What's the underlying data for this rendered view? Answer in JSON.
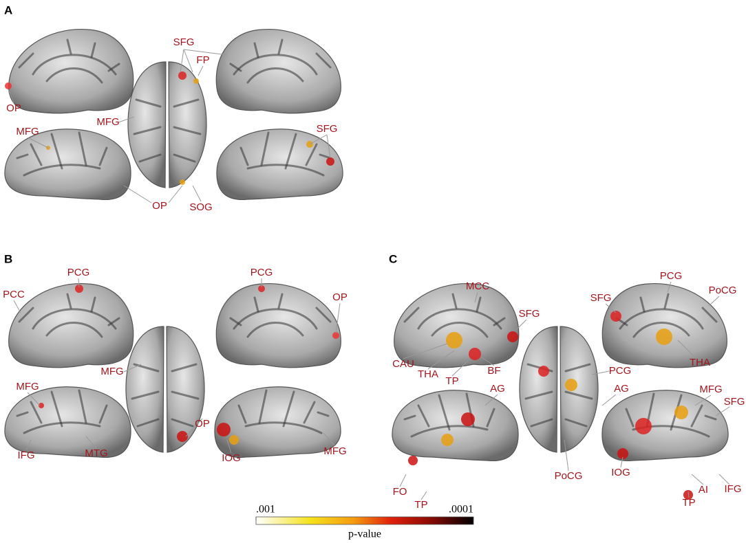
{
  "panels": [
    {
      "letter": "A",
      "labels": [
        "OP",
        "SFG",
        "FP",
        "MFG",
        "MFG",
        "SFG",
        "OP",
        "SOG"
      ]
    },
    {
      "letter": "B",
      "labels": [
        "PCG",
        "PCC",
        "PCG",
        "OP",
        "MFG",
        "MFG",
        "IFG",
        "MTG",
        "OP",
        "IOG",
        "MFG"
      ]
    },
    {
      "letter": "C",
      "labels": [
        "MCC",
        "SFG",
        "CAU",
        "THA",
        "TP",
        "BF",
        "PCG",
        "PoCG",
        "SFG",
        "THA",
        "AG",
        "PCG",
        "AG",
        "MFG",
        "SFG",
        "FO",
        "TP",
        "PoCG",
        "IOG",
        "AI",
        "IFG",
        "TP"
      ]
    }
  ],
  "colorbar": {
    "ticks": [
      {
        "value": 0.001,
        "label": ".001"
      },
      {
        "value": 0.0001,
        "label": ".0001"
      }
    ],
    "title": "p-value"
  }
}
